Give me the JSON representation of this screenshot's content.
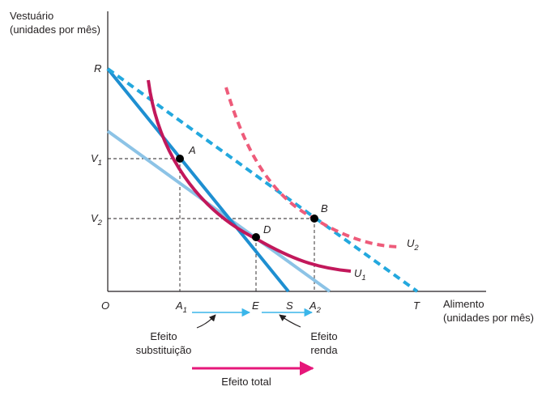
{
  "y_axis": {
    "line1": "Vestuário",
    "line2": "(unidades por mês)"
  },
  "x_axis": {
    "line1": "Alimento",
    "line2": "(unidades por mês)"
  },
  "points": {
    "origin": "O",
    "R": "R",
    "T": "T",
    "S": "S",
    "E": "E",
    "A": "A",
    "B": "B",
    "D": "D",
    "V1": {
      "base": "V",
      "sub": "1"
    },
    "V2": {
      "base": "V",
      "sub": "2"
    },
    "A1": {
      "base": "A",
      "sub": "1"
    },
    "A2": {
      "base": "A",
      "sub": "2"
    },
    "U1": {
      "base": "U",
      "sub": "1"
    },
    "U2": {
      "base": "U",
      "sub": "2"
    }
  },
  "effects": {
    "substitution": {
      "line1": "Efeito",
      "line2": "substituição"
    },
    "income": {
      "line1": "Efeito",
      "line2": "renda"
    },
    "total": "Efeito total"
  },
  "colors": {
    "budget_dark": "#1e8fd1",
    "budget_light": "#8cc3e6",
    "budget_dashed": "#23a8de",
    "u1": "#c2185b",
    "u2": "#ee5b7a",
    "effect_arrow_blue": "#3ab6ea",
    "effect_arrow_total": "#e6177a",
    "axis": "#231f20"
  }
}
